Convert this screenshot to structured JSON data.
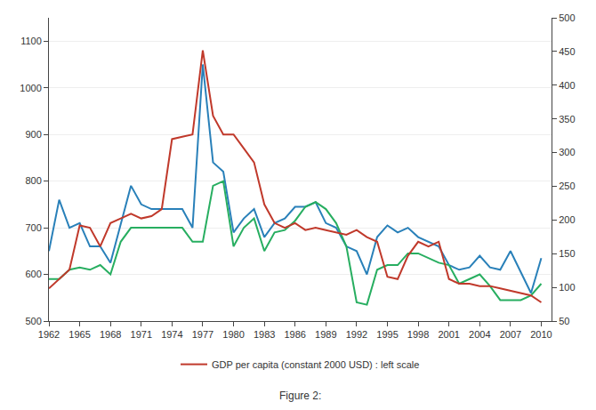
{
  "chart_data": {
    "type": "line",
    "x": [
      1962,
      1963,
      1964,
      1965,
      1966,
      1967,
      1968,
      1969,
      1970,
      1971,
      1972,
      1973,
      1974,
      1975,
      1976,
      1977,
      1978,
      1979,
      1980,
      1981,
      1982,
      1983,
      1984,
      1985,
      1986,
      1987,
      1988,
      1989,
      1990,
      1991,
      1992,
      1993,
      1994,
      1995,
      1996,
      1997,
      1998,
      1999,
      2000,
      2001,
      2002,
      2003,
      2004,
      2005,
      2006,
      2007,
      2008,
      2009,
      2010
    ],
    "series": [
      {
        "color": "#2980b9",
        "values": [
          650,
          760,
          700,
          710,
          660,
          660,
          625,
          710,
          790,
          750,
          740,
          740,
          740,
          740,
          700,
          1050,
          840,
          820,
          690,
          720,
          740,
          680,
          710,
          720,
          745,
          745,
          755,
          710,
          700,
          660,
          650,
          600,
          680,
          705,
          690,
          700,
          680,
          670,
          660,
          620,
          610,
          615,
          640,
          615,
          610,
          650,
          605,
          560,
          635
        ]
      },
      {
        "color": "#27ae60",
        "values": [
          590,
          590,
          610,
          615,
          610,
          620,
          600,
          670,
          700,
          700,
          700,
          700,
          700,
          700,
          670,
          670,
          790,
          800,
          660,
          700,
          720,
          650,
          690,
          695,
          715,
          745,
          755,
          740,
          710,
          660,
          540,
          535,
          610,
          620,
          620,
          645,
          645,
          635,
          625,
          620,
          580,
          590,
          600,
          575,
          545,
          545,
          545,
          555,
          580
        ]
      },
      {
        "name": "GDP per capita (constant 2000 USD) : left scale",
        "color": "#c0392b",
        "values": [
          570,
          590,
          610,
          705,
          700,
          660,
          710,
          720,
          730,
          720,
          725,
          740,
          890,
          895,
          900,
          1080,
          940,
          900,
          900,
          870,
          840,
          750,
          710,
          700,
          710,
          695,
          700,
          695,
          690,
          685,
          695,
          680,
          670,
          595,
          590,
          640,
          670,
          660,
          670,
          590,
          580,
          580,
          575,
          575,
          570,
          565,
          560,
          555,
          540
        ]
      }
    ],
    "xlim": [
      1962,
      2011
    ],
    "xticks": [
      1962,
      1965,
      1968,
      1971,
      1974,
      1977,
      1980,
      1983,
      1986,
      1989,
      1992,
      1995,
      1998,
      2001,
      2004,
      2007,
      2010
    ],
    "ylim": [
      500,
      1150
    ],
    "yticks": [
      500,
      600,
      700,
      800,
      900,
      1000,
      1100
    ],
    "y2lim": [
      50,
      500
    ],
    "y2ticks": [
      50,
      100,
      150,
      200,
      250,
      300,
      350,
      400,
      450,
      500
    ],
    "grid": true,
    "legend": "bottom",
    "annotations": [
      "Figure 2:"
    ]
  }
}
